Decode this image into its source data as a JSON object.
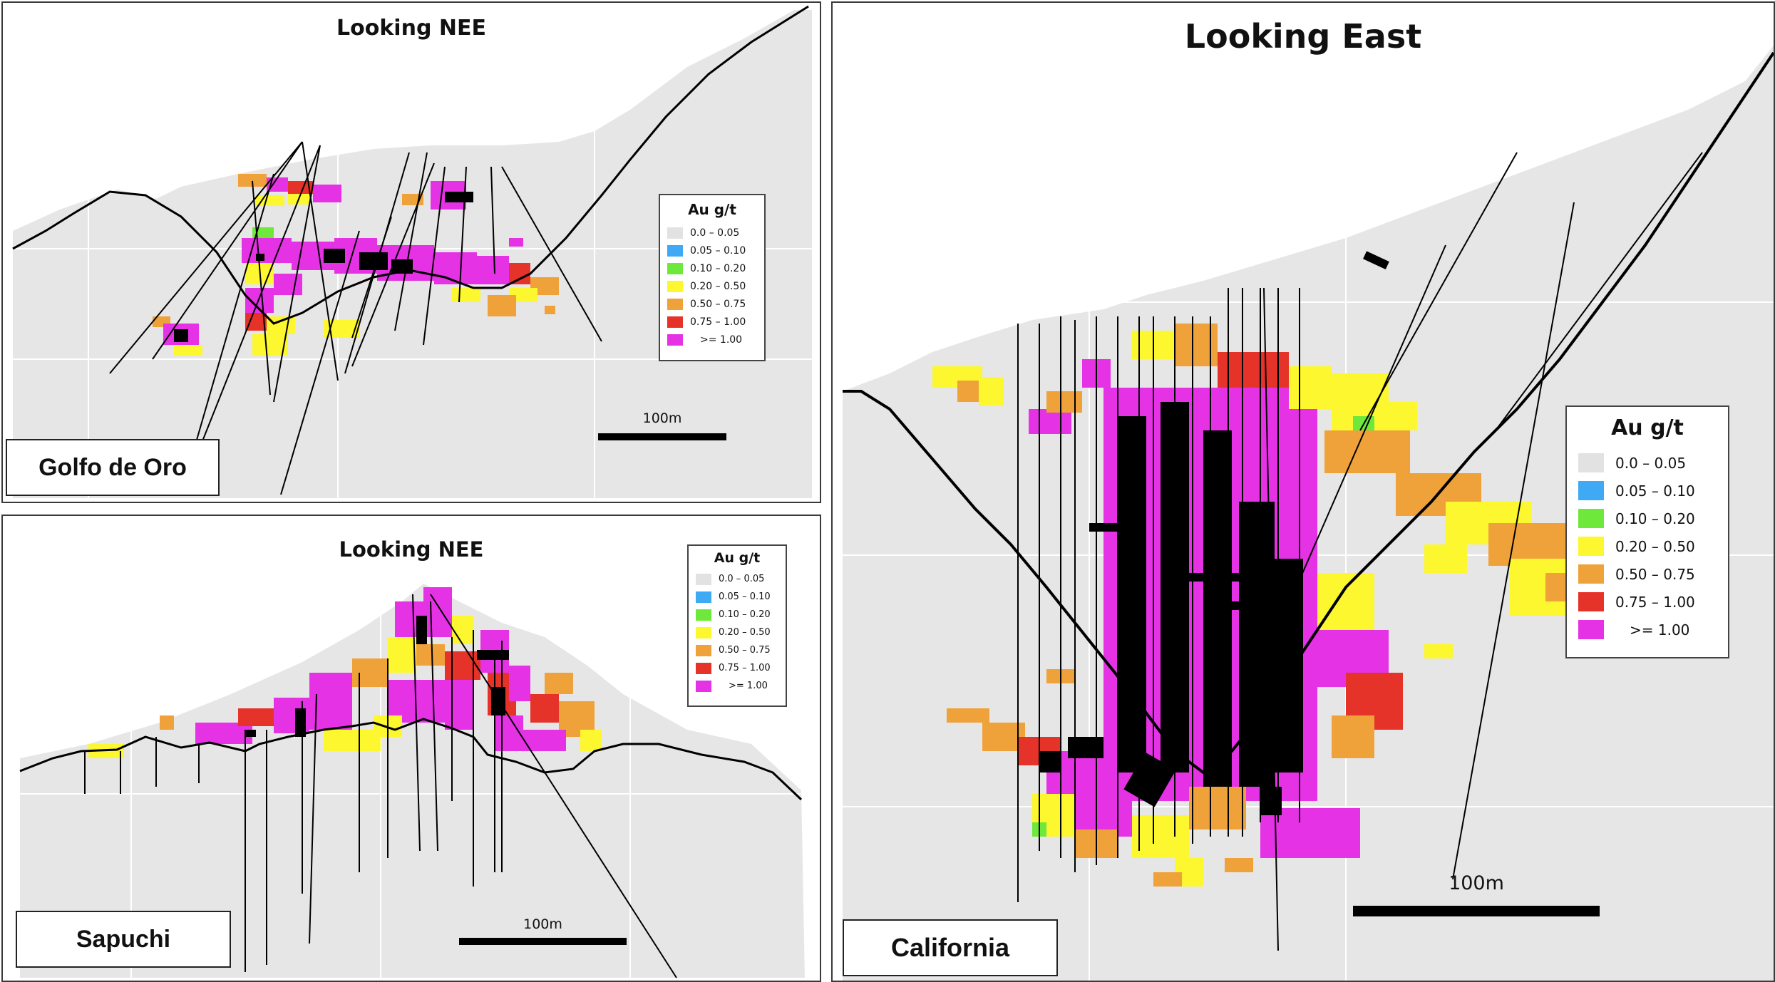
{
  "legend": {
    "title": "Au g/t",
    "items": [
      {
        "label": "0.0 – 0.05",
        "color": "#e2e2e2"
      },
      {
        "label": "0.05 – 0.10",
        "color": "#3fa9f5"
      },
      {
        "label": "0.10 – 0.20",
        "color": "#6ee83a"
      },
      {
        "label": "0.20 – 0.50",
        "color": "#fcf72e"
      },
      {
        "label": "0.50 – 0.75",
        "color": "#f0a23a"
      },
      {
        "label": "0.75 – 1.00",
        "color": "#e5332a"
      },
      {
        "label": ">= 1.00",
        "color": "#e532e5"
      }
    ]
  },
  "panels": {
    "golfo": {
      "title": "Looking NEE",
      "name": "Golfo de Oro",
      "scale_label": "100m"
    },
    "sapuchi": {
      "title": "Looking NEE",
      "name": "Sapuchi",
      "scale_label": "100m"
    },
    "california": {
      "title": "Looking East",
      "name": "California",
      "scale_label": "100m"
    }
  },
  "colors": {
    "terrain_fill": "#e6e6e6",
    "topo_line": "#000000",
    "drill_trace": "#000000",
    "grid_line": "#ffffff"
  }
}
